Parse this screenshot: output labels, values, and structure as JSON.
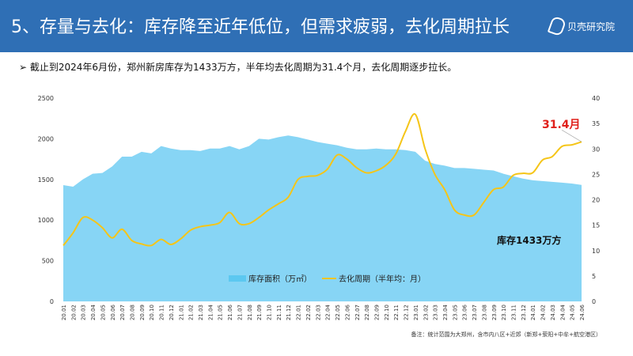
{
  "header": {
    "title": "5、存量与去化：库存降至近年低位，但需求疲弱，去化周期拉长",
    "logo": "贝壳研究院"
  },
  "subtitle": "➢  截止到2024年6月份，郑州新房库存为1433万方，半年均去化周期为31.4个月，去化周期逐步拉长。",
  "footnote": "备注：统计范围为大郑州，含市内八区+近郊（新郑+荥阳+中牟+航空港区）",
  "chart_data": {
    "type": "area+line",
    "categories": [
      "20.01",
      "20.02",
      "20.03",
      "20.04",
      "20.05",
      "20.06",
      "20.07",
      "20.08",
      "20.09",
      "20.10",
      "20.11",
      "20.12",
      "21.01",
      "21.02",
      "21.03",
      "21.04",
      "21.05",
      "21.06",
      "21.07",
      "21.08",
      "21.09",
      "21.10",
      "21.11",
      "21.12",
      "22.01",
      "22.02",
      "22.03",
      "22.04",
      "22.05",
      "22.06",
      "22.07",
      "22.08",
      "22.09",
      "22.10",
      "22.11",
      "22.12",
      "23.01",
      "23.02",
      "23.03",
      "23.04",
      "23.05",
      "23.06",
      "23.07",
      "23.08",
      "23.09",
      "23.10",
      "23.11",
      "23.12",
      "24.01",
      "24.02",
      "24.03",
      "24.04",
      "24.05",
      "24.06"
    ],
    "series": [
      {
        "name": "库存面积（万㎡）",
        "axis": "left",
        "type": "area",
        "color": "#87d5f5",
        "values": [
          1430,
          1410,
          1500,
          1570,
          1580,
          1660,
          1780,
          1780,
          1840,
          1820,
          1910,
          1880,
          1860,
          1860,
          1850,
          1880,
          1880,
          1910,
          1870,
          1910,
          2000,
          1990,
          2020,
          2040,
          2020,
          1990,
          1960,
          1940,
          1920,
          1890,
          1870,
          1870,
          1880,
          1870,
          1870,
          1860,
          1840,
          1730,
          1690,
          1670,
          1640,
          1640,
          1630,
          1620,
          1610,
          1570,
          1540,
          1510,
          1490,
          1480,
          1470,
          1460,
          1450,
          1433
        ]
      },
      {
        "name": "去化周期（半年均：月）",
        "axis": "right",
        "type": "line",
        "color": "#f5c518",
        "values": [
          11,
          13.5,
          16.5,
          16,
          14.5,
          12.5,
          14.2,
          12,
          11.3,
          11,
          12.2,
          11.2,
          12.3,
          14,
          14.7,
          15,
          15.5,
          17.5,
          15.3,
          15.3,
          16.5,
          18,
          19.2,
          20.5,
          24,
          24.6,
          24.8,
          26,
          28.8,
          28,
          26.3,
          25.3,
          25.7,
          26.8,
          29,
          33.5,
          36.8,
          30,
          25,
          22,
          18,
          17,
          17,
          19.5,
          22,
          22.5,
          24.8,
          25.2,
          25.3,
          27.8,
          28.5,
          30.5,
          30.8,
          31.4
        ]
      }
    ],
    "yleft": {
      "ticks": [
        0,
        500,
        1000,
        1500,
        2000,
        2500
      ],
      "range": [
        0,
        2500
      ]
    },
    "yright": {
      "ticks": [
        0,
        5,
        10,
        15,
        20,
        25,
        30,
        35,
        40
      ],
      "range": [
        0,
        40
      ]
    },
    "annotations": {
      "last_cycle": "31.4月",
      "inventory": "库存1433万方"
    },
    "legend_position": "bottom-center"
  }
}
